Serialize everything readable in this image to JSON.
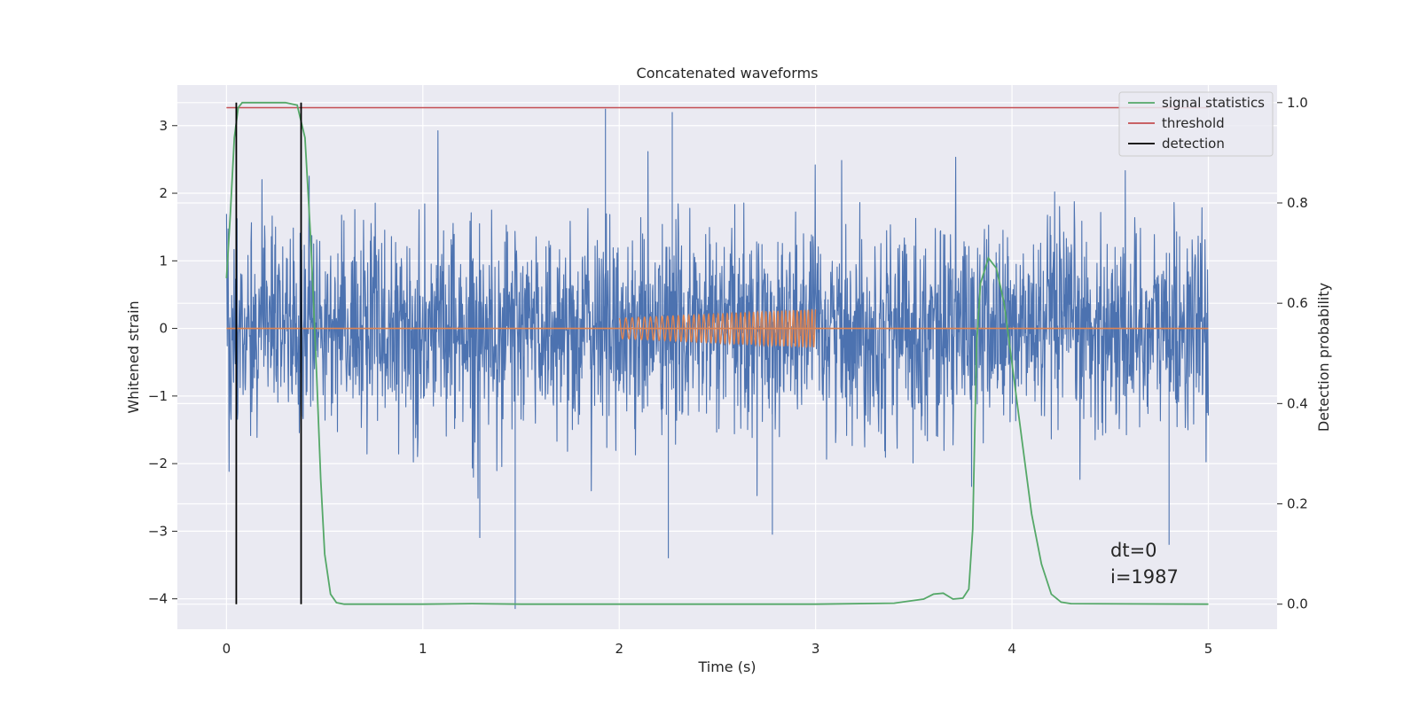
{
  "chart_data": {
    "type": "line",
    "title": "Concatenated waveforms",
    "xlabel": "Time (s)",
    "ylabel": "Whitened strain",
    "ylabel_right": "Detection probability",
    "xlim": [
      -0.25,
      5.35
    ],
    "ylim": [
      -4.45,
      3.6
    ],
    "ylim_right": [
      -0.05,
      1.035
    ],
    "x_ticks": [
      0,
      1,
      2,
      3,
      4,
      5
    ],
    "x_tick_labels": [
      "0",
      "1",
      "2",
      "3",
      "4",
      "5"
    ],
    "y_ticks": [
      -4,
      -3,
      -2,
      -1,
      0,
      1,
      2,
      3
    ],
    "y_tick_labels": [
      "−4",
      "−3",
      "−2",
      "−1",
      "0",
      "1",
      "2",
      "3"
    ],
    "y_right_ticks": [
      0.0,
      0.2,
      0.4,
      0.6,
      0.8,
      1.0
    ],
    "y_right_tick_labels": [
      "0.0",
      "0.2",
      "0.4",
      "0.6",
      "0.8",
      "1.0"
    ],
    "grid": true,
    "legend_position": "top-right",
    "legend": [
      "signal statistics",
      "threshold",
      "detection"
    ],
    "colors": {
      "background": "#eaeaf2",
      "grid": "#ffffff",
      "noise": "#4c72b0",
      "injected": "#dd8452",
      "signal_statistics": "#55a868",
      "threshold": "#c44e52",
      "detection": "#000000"
    },
    "series": [
      {
        "name": "noise",
        "axis": "left",
        "x_range": [
          0,
          5
        ],
        "typical_amplitude": 1.2,
        "max": 3.25,
        "min": -4.15,
        "spikes": [
          {
            "x": 1.93,
            "y": 3.25
          },
          {
            "x": 2.27,
            "y": 3.2
          },
          {
            "x": 1.47,
            "y": -4.15
          },
          {
            "x": 2.25,
            "y": -3.4
          },
          {
            "x": 4.8,
            "y": -3.2
          },
          {
            "x": 1.29,
            "y": -3.1
          },
          {
            "x": 2.78,
            "y": -3.05
          }
        ]
      },
      {
        "name": "injected",
        "axis": "left",
        "x_start": 2.0,
        "x_end": 3.0,
        "amplitude_start": 0.15,
        "amplitude_end": 0.28,
        "cycles": 42,
        "baseline": 0
      },
      {
        "name": "signal statistics",
        "axis": "right",
        "x": [
          0.0,
          0.02,
          0.04,
          0.06,
          0.08,
          0.1,
          0.2,
          0.3,
          0.36,
          0.4,
          0.43,
          0.46,
          0.48,
          0.5,
          0.53,
          0.56,
          0.6,
          1.0,
          1.25,
          1.5,
          2.0,
          3.0,
          3.4,
          3.55,
          3.6,
          3.65,
          3.7,
          3.75,
          3.78,
          3.8,
          3.82,
          3.84,
          3.88,
          3.92,
          3.96,
          4.0,
          4.05,
          4.1,
          4.15,
          4.2,
          4.25,
          4.3,
          5.0
        ],
        "y": [
          0.65,
          0.78,
          0.93,
          0.99,
          1.0,
          1.0,
          1.0,
          1.0,
          0.995,
          0.93,
          0.72,
          0.45,
          0.25,
          0.1,
          0.02,
          0.003,
          0.0,
          0.0,
          0.001,
          0.0,
          0.0,
          0.0,
          0.002,
          0.01,
          0.02,
          0.022,
          0.01,
          0.012,
          0.03,
          0.15,
          0.52,
          0.64,
          0.69,
          0.67,
          0.6,
          0.48,
          0.33,
          0.18,
          0.08,
          0.02,
          0.004,
          0.001,
          0.0
        ]
      },
      {
        "name": "threshold",
        "axis": "right",
        "x": [
          0,
          5
        ],
        "y": [
          0.99,
          0.99
        ]
      },
      {
        "name": "detection",
        "axis": "right",
        "x": [
          0.05,
          0.38
        ],
        "y_range": [
          0.0,
          1.0
        ]
      }
    ],
    "annotations": [
      "dt=0",
      "i=1987"
    ]
  }
}
